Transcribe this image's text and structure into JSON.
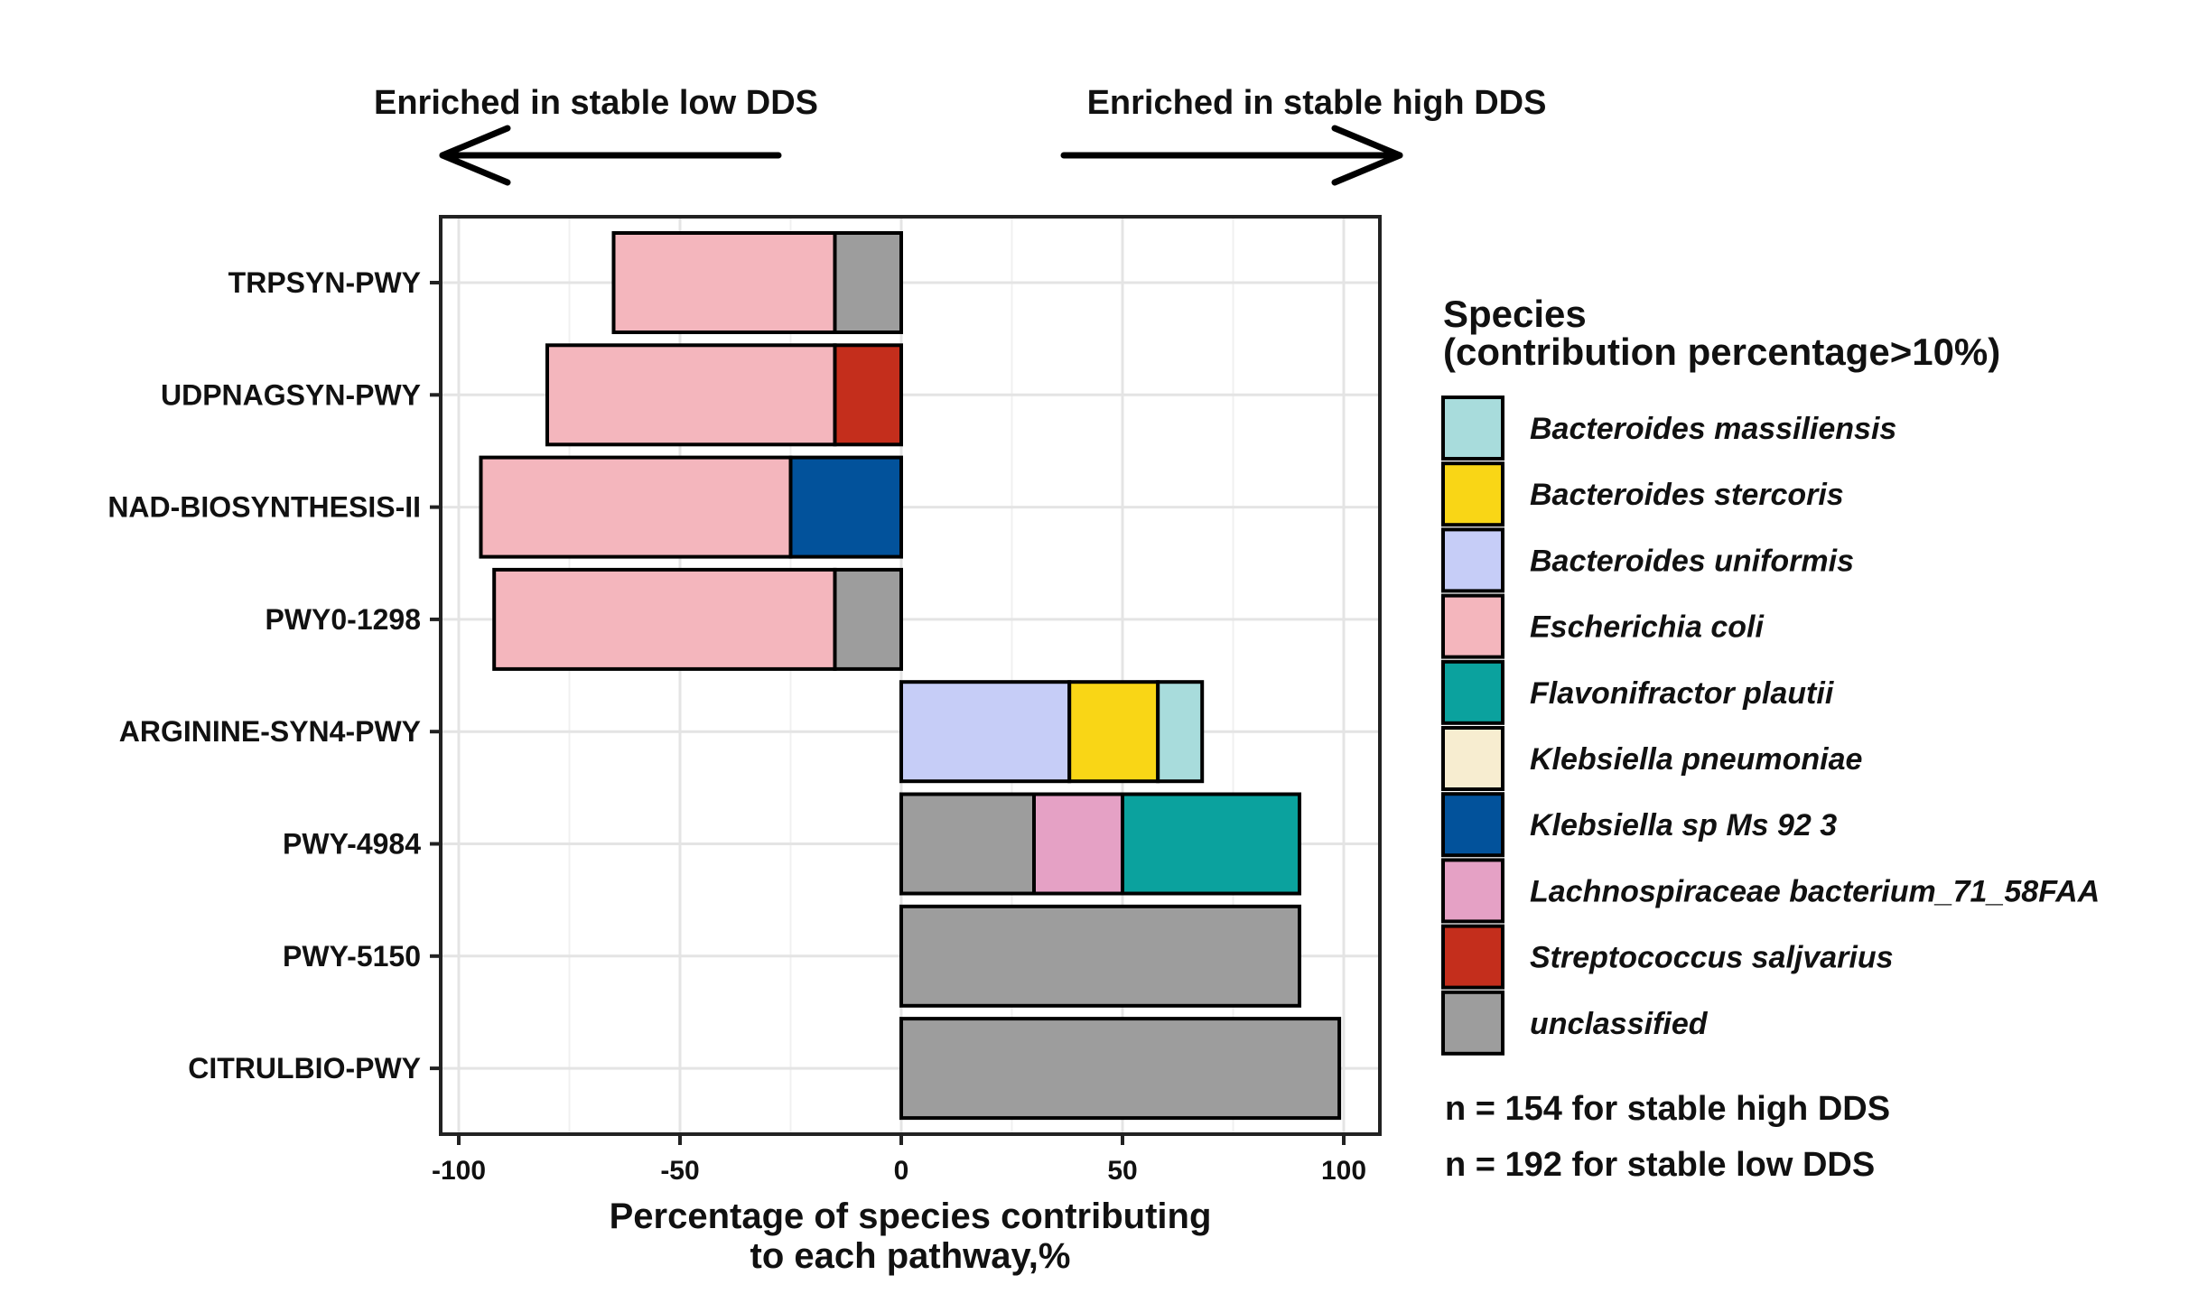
{
  "chart_data": {
    "type": "bar",
    "orientation": "horizontal",
    "stacked": true,
    "xlabel_line1": "Percentage of species contributing",
    "xlabel_line2": "to each pathway,%",
    "ylabel": "",
    "xlim": [
      -105,
      107
    ],
    "x_ticks": [
      -100,
      -50,
      0,
      50,
      100
    ],
    "x_tick_labels": [
      "-100",
      "-50",
      "0",
      "50",
      "100"
    ],
    "grid": true,
    "direction_left": "Enriched in stable low DDS",
    "direction_right": "Enriched in stable high DDS",
    "categories": [
      "TRPSYN-PWY",
      "UDPNAGSYN-PWY",
      "NAD-BIOSYNTHESIS-II",
      "PWY0-1298",
      "ARGININE-SYN4-PWY",
      "PWY-4984",
      "PWY-5150",
      "CITRULBIO-PWY"
    ],
    "bars": [
      {
        "pathway": "TRPSYN-PWY",
        "segments": [
          {
            "species": "unclassified",
            "value": -15
          },
          {
            "species": "Escherichia coli",
            "value": -50
          }
        ]
      },
      {
        "pathway": "UDPNAGSYN-PWY",
        "segments": [
          {
            "species": "Streptococcus saljvarius",
            "value": -15
          },
          {
            "species": "Escherichia coli",
            "value": -65
          }
        ]
      },
      {
        "pathway": "NAD-BIOSYNTHESIS-II",
        "segments": [
          {
            "species": "Klebsiella sp Ms 92 3",
            "value": -25
          },
          {
            "species": "Escherichia coli",
            "value": -70
          }
        ]
      },
      {
        "pathway": "PWY0-1298",
        "segments": [
          {
            "species": "unclassified",
            "value": -15
          },
          {
            "species": "Escherichia coli",
            "value": -77
          }
        ]
      },
      {
        "pathway": "ARGININE-SYN4-PWY",
        "segments": [
          {
            "species": "Bacteroides uniformis",
            "value": 38
          },
          {
            "species": "Bacteroides stercoris",
            "value": 20
          },
          {
            "species": "Bacteroides massiliensis",
            "value": 10
          }
        ]
      },
      {
        "pathway": "PWY-4984",
        "segments": [
          {
            "species": "unclassified",
            "value": 30
          },
          {
            "species": "Lachnospiraceae bacterium_71_58FAA",
            "value": 20
          },
          {
            "species": "Flavonifractor plautii",
            "value": 40
          }
        ]
      },
      {
        "pathway": "PWY-5150",
        "segments": [
          {
            "species": "unclassified",
            "value": 90
          }
        ]
      },
      {
        "pathway": "CITRULBIO-PWY",
        "segments": [
          {
            "species": "unclassified",
            "value": 99
          }
        ]
      }
    ],
    "legend": {
      "title_line1": "Species",
      "title_line2": "(contribution percentage>10%)",
      "placement": "right",
      "entries": [
        {
          "name": "Bacteroides massiliensis",
          "color": "#a8dcdc"
        },
        {
          "name": "Bacteroides stercoris",
          "color": "#f9d616"
        },
        {
          "name": "Bacteroides uniformis",
          "color": "#c6cdf7"
        },
        {
          "name": "Escherichia coli",
          "color": "#f4b6bd"
        },
        {
          "name": "Flavonifractor plautii",
          "color": "#0ba29e"
        },
        {
          "name": "Klebsiella pneumoniae",
          "color": "#f7edd0"
        },
        {
          "name": "Klebsiella sp Ms 92 3",
          "color": "#02529b"
        },
        {
          "name": "Lachnospiraceae bacterium_71_58FAA",
          "color": "#e5a1c5"
        },
        {
          "name": "Streptococcus saljvarius",
          "color": "#c42e1c"
        },
        {
          "name": "unclassified",
          "color": "#9d9d9d"
        }
      ]
    },
    "notes": [
      "n = 154 for stable high DDS",
      "n = 192 for stable low DDS"
    ]
  }
}
